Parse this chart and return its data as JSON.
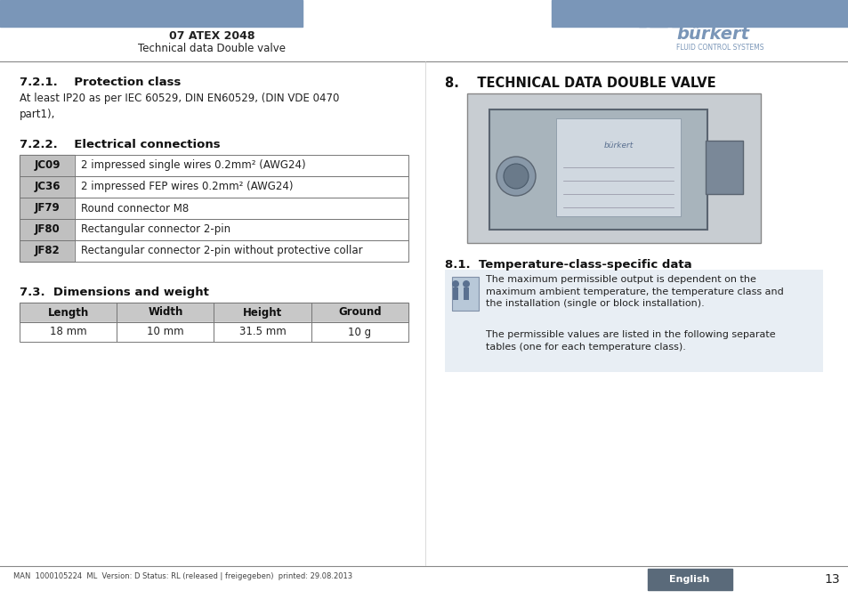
{
  "header_color": "#7a96b8",
  "header_text_bold": "07 ATEX 2048",
  "header_text_normal": "Technical data Double valve",
  "footer_text": "MAN  1000105224  ML  Version: D Status: RL (released | freigegeben)  printed: 29.08.2013",
  "footer_lang": "English",
  "footer_page": "13",
  "footer_lang_bg": "#5a6a7a",
  "section_721_title": "7.2.1.    Protection class",
  "section_721_body": "At least IP20 as per IEC 60529, DIN EN60529, (DIN VDE 0470\npart1),",
  "section_722_title": "7.2.2.    Electrical connections",
  "elec_table": [
    [
      "JC09",
      "2 impressed single wires 0.2mm² (AWG24)"
    ],
    [
      "JC36",
      "2 impressed FEP wires 0.2mm² (AWG24)"
    ],
    [
      "JF79",
      "Round connector M8"
    ],
    [
      "JF80",
      "Rectangular connector 2-pin"
    ],
    [
      "JF82",
      "Rectangular connector 2-pin without protective collar"
    ]
  ],
  "section_73_title": "7.3.  Dimensions and weight",
  "dim_headers": [
    "Length",
    "Width",
    "Height",
    "Ground"
  ],
  "dim_values": [
    "18 mm",
    "10 mm",
    "31.5 mm",
    "10 g"
  ],
  "section_8_title": "8.    TECHNICAL DATA DOUBLE VALVE",
  "section_81_title": "8.1.  Temperature-class-specific data",
  "section_81_body_1": "The maximum permissible output is dependent on the\nmaximum ambient temperature, the temperature class and\nthe installation (single or block installation).",
  "section_81_body_2": "The permissible values are listed in the following separate\ntables (one for each temperature class).",
  "note_bg": "#e8eef4",
  "divider_color": "#888888",
  "bg_color": "#ffffff",
  "text_color": "#222222",
  "burkert_color": "#7a96b8",
  "grey_cell": "#c8c8c8",
  "footer_lang_color": "#ffffff",
  "col1_bg": "#c0c0c0"
}
